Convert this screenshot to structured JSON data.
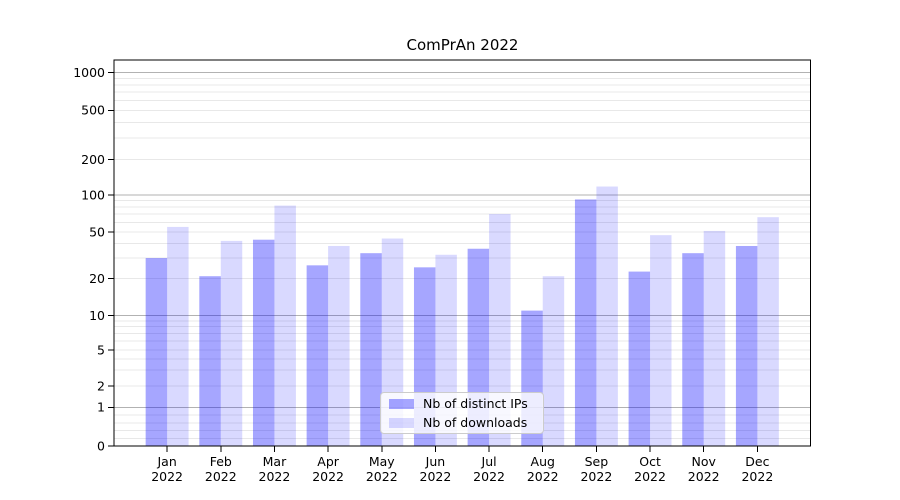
{
  "chart_data": {
    "type": "bar",
    "title": "ComPrAn 2022",
    "categories": [
      "Jan 2022",
      "Feb 2022",
      "Mar 2022",
      "Apr 2022",
      "May 2022",
      "Jun 2022",
      "Jul 2022",
      "Aug 2022",
      "Sep 2022",
      "Oct 2022",
      "Nov 2022",
      "Dec 2022"
    ],
    "series": [
      {
        "name": "Nb of distinct IPs",
        "color": "rgba(0,0,255,0.35)",
        "values": [
          30,
          21,
          43,
          26,
          33,
          25,
          36,
          11,
          92,
          23,
          33,
          38
        ]
      },
      {
        "name": "Nb of downloads",
        "color": "rgba(0,0,255,0.15)",
        "values": [
          55,
          42,
          82,
          38,
          44,
          32,
          70,
          21,
          118,
          47,
          51,
          66
        ]
      }
    ],
    "xlabel": "",
    "ylabel": "",
    "y_axis": {
      "scale": "symlog",
      "tick_values": [
        1000,
        500,
        200,
        100,
        50,
        20,
        10,
        5,
        2,
        1,
        0
      ],
      "major_grid_values": [
        1,
        10,
        100,
        1000
      ],
      "ylim": [
        0,
        1270
      ]
    },
    "grid": true,
    "legend": {
      "position": "lower center",
      "entries": [
        "Nb of distinct IPs",
        "Nb of downloads"
      ]
    }
  },
  "colors": {
    "bar_distinct_ips": "rgba(0,0,255,0.35)",
    "bar_downloads": "rgba(0,0,255,0.15)",
    "major_grid": "#b2b2b2",
    "minor_grid": "#e8e8e8",
    "spine": "#000000",
    "text": "#000000",
    "legend_border": "#cccccc"
  }
}
